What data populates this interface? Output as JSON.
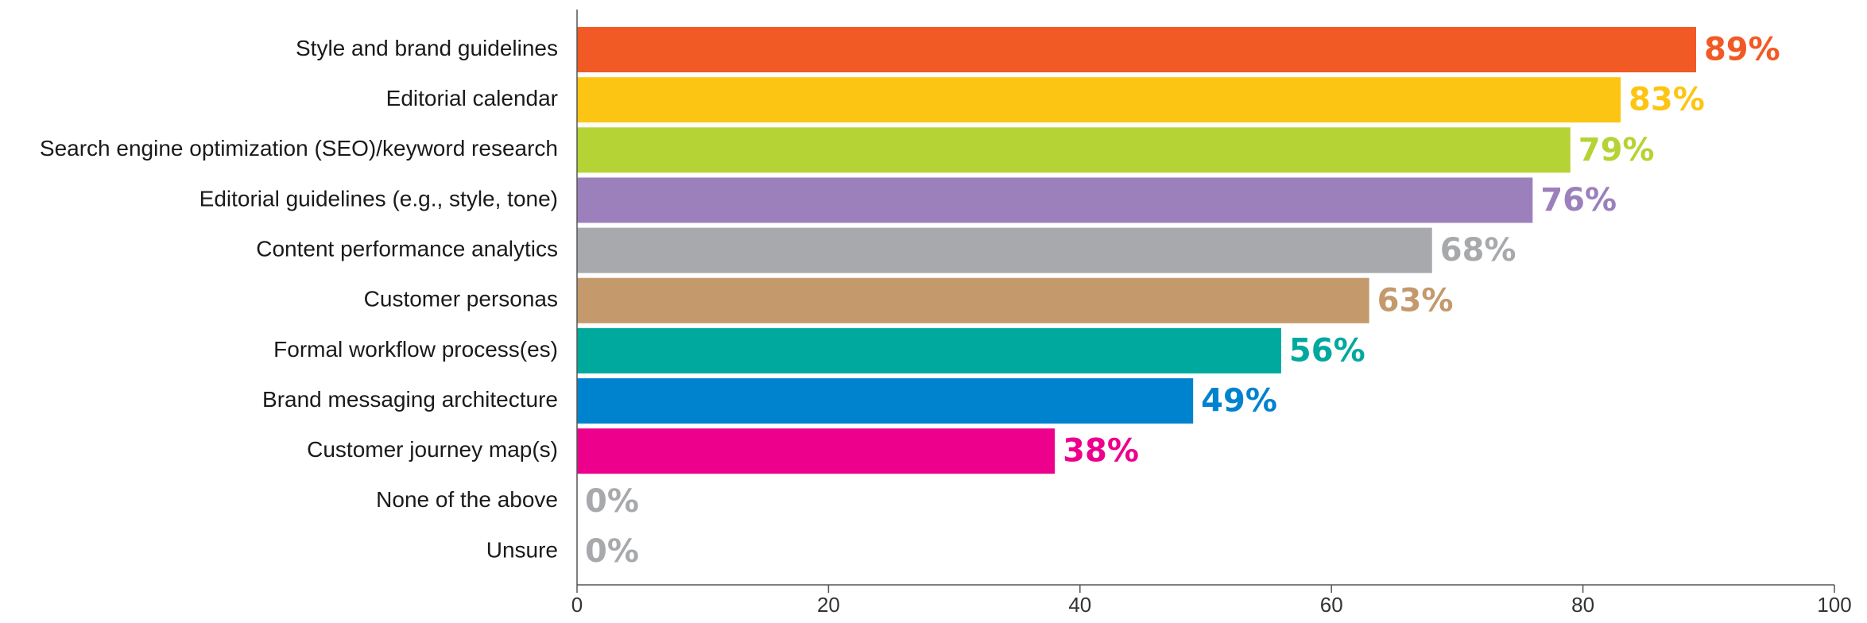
{
  "chart_data": {
    "type": "bar",
    "orientation": "horizontal",
    "categories": [
      "Style and brand guidelines",
      "Editorial calendar",
      "Search engine optimization (SEO)/keyword research",
      "Editorial guidelines (e.g., style, tone)",
      "Content performance analytics",
      "Customer personas",
      "Formal workflow process(es)",
      "Brand messaging architecture",
      "Customer journey map(s)",
      "None of the above",
      "Unsure"
    ],
    "values": [
      89,
      83,
      79,
      76,
      68,
      63,
      56,
      49,
      38,
      0,
      0
    ],
    "value_labels": [
      "89%",
      "83%",
      "79%",
      "76%",
      "68%",
      "63%",
      "56%",
      "49%",
      "38%",
      "0%",
      "0%"
    ],
    "colors": [
      "#F15A24",
      "#FDC513",
      "#B5D334",
      "#9C80BB",
      "#A7A9AC",
      "#C4996C",
      "#00A99D",
      "#0083CF",
      "#EC008C",
      "#A7A9AC",
      "#A7A9AC"
    ],
    "xlim": [
      0,
      100
    ],
    "xticks": [
      0,
      20,
      40,
      60,
      80,
      100
    ],
    "xtick_labels": [
      "0",
      "20",
      "40",
      "60",
      "80",
      "100"
    ],
    "grid": false,
    "legend": "none"
  }
}
